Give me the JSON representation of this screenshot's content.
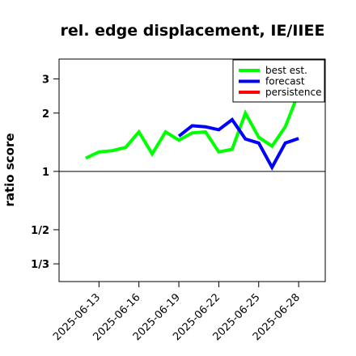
{
  "chart_data": {
    "type": "line",
    "title": "rel. edge displacement, IE/IIEE",
    "ylabel": "ratio score",
    "xlabel": "",
    "y_scale": "log",
    "ylim": [
      0.27,
      3.8
    ],
    "reference_line": 1,
    "y_ticks": [
      {
        "value": 3,
        "label": "3"
      },
      {
        "value": 2,
        "label": "2"
      },
      {
        "value": 1,
        "label": "1"
      },
      {
        "value": 0.5,
        "label": "1/2"
      },
      {
        "value": 0.3333,
        "label": "1/3"
      }
    ],
    "x_ticks": [
      {
        "date": "2025-06-13",
        "color": "#000000"
      },
      {
        "date": "2025-06-16",
        "color": "#000000"
      },
      {
        "date": "2025-06-19",
        "color": "#228B22"
      },
      {
        "date": "2025-06-22",
        "color": "#000000"
      },
      {
        "date": "2025-06-25",
        "color": "#000000"
      },
      {
        "date": "2025-06-28",
        "color": "#000000"
      }
    ],
    "xlim": [
      "2025-06-10",
      "2025-06-30"
    ],
    "legend_position": "top-right",
    "series": [
      {
        "name": "best est.",
        "color": "#00ff00",
        "x": [
          "2025-06-12",
          "2025-06-13",
          "2025-06-14",
          "2025-06-15",
          "2025-06-16",
          "2025-06-17",
          "2025-06-18",
          "2025-06-19",
          "2025-06-20",
          "2025-06-21",
          "2025-06-22",
          "2025-06-23",
          "2025-06-24",
          "2025-06-25",
          "2025-06-26",
          "2025-06-27",
          "2025-06-28"
        ],
        "y": [
          1.17,
          1.26,
          1.28,
          1.33,
          1.6,
          1.23,
          1.6,
          1.45,
          1.58,
          1.6,
          1.26,
          1.3,
          2.0,
          1.5,
          1.35,
          1.7,
          2.55
        ]
      },
      {
        "name": "forecast",
        "color": "#0000ff",
        "x": [
          "2025-06-19",
          "2025-06-20",
          "2025-06-21",
          "2025-06-22",
          "2025-06-23",
          "2025-06-24",
          "2025-06-25",
          "2025-06-26",
          "2025-06-27",
          "2025-06-28"
        ],
        "y": [
          1.52,
          1.72,
          1.7,
          1.64,
          1.85,
          1.47,
          1.4,
          1.05,
          1.4,
          1.48
        ]
      },
      {
        "name": "persistence",
        "color": "#ff0000",
        "x": [],
        "y": []
      }
    ]
  }
}
